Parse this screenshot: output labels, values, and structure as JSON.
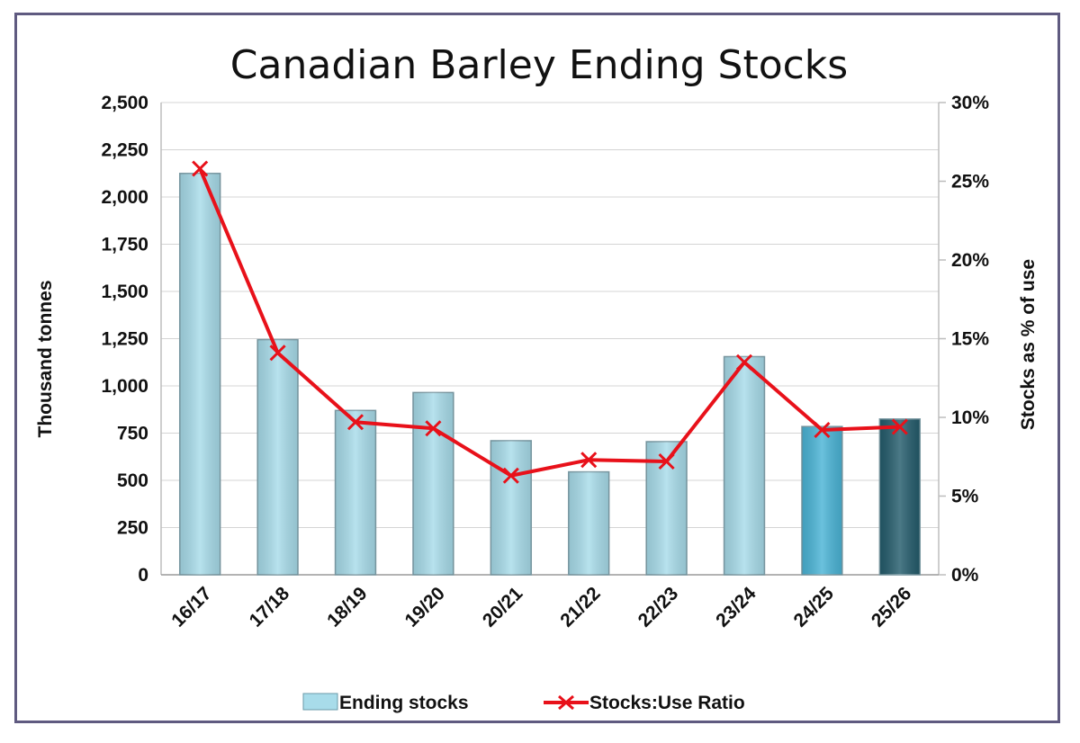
{
  "chart_data": {
    "type": "bar",
    "title": "Canadian Barley Ending Stocks",
    "categories": [
      "16/17",
      "17/18",
      "18/19",
      "19/20",
      "20/21",
      "21/22",
      "22/23",
      "23/24",
      "24/25",
      "25/26"
    ],
    "series": [
      {
        "name": "Ending stocks",
        "type": "bar",
        "axis": "left",
        "values": [
          2125,
          1245,
          870,
          965,
          710,
          545,
          705,
          1155,
          785,
          825
        ],
        "colors": [
          "#a8dcea",
          "#a8dcea",
          "#a8dcea",
          "#a8dcea",
          "#a8dcea",
          "#a8dcea",
          "#a8dcea",
          "#a8dcea",
          "#4ab4d6",
          "#245c6c"
        ]
      },
      {
        "name": "Stocks:Use Ratio",
        "type": "line",
        "axis": "right",
        "color": "#e8111a",
        "values": [
          25.8,
          14.1,
          9.7,
          9.3,
          6.3,
          7.3,
          7.2,
          13.5,
          9.2,
          9.4
        ]
      }
    ],
    "ylabel": "Thousand tonnes",
    "y2label": "Stocks as % of use",
    "ylim": [
      0,
      2500
    ],
    "y2lim": [
      0,
      30
    ],
    "yticks": [
      "0",
      "250",
      "500",
      "750",
      "1,000",
      "1,250",
      "1,500",
      "1,750",
      "2,000",
      "2,250",
      "2,500"
    ],
    "y2ticks": [
      "0%",
      "5%",
      "10%",
      "15%",
      "20%",
      "25%",
      "30%"
    ],
    "grid": true,
    "legend_position": "bottom"
  }
}
